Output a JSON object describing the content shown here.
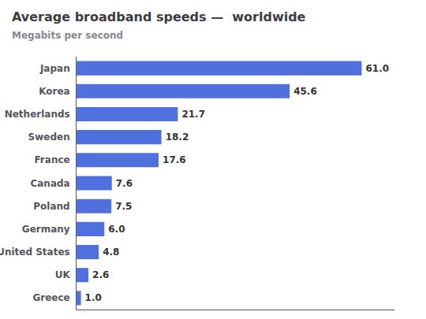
{
  "chart_data": {
    "type": "bar",
    "title": "Average broadband speeds —  worldwide",
    "subtitle": "Megabits per second",
    "orientation": "horizontal",
    "categories": [
      "Japan",
      "Korea",
      "Netherlands",
      "Sweden",
      "France",
      "Canada",
      "Poland",
      "Germany",
      "United States",
      "UK",
      "Greece"
    ],
    "values": [
      61.0,
      45.6,
      21.7,
      18.2,
      17.6,
      7.6,
      7.5,
      6.0,
      4.8,
      2.6,
      1.0
    ],
    "value_labels": [
      "61.0",
      "45.6",
      "21.7",
      "18.2",
      "17.6",
      "7.6",
      "7.5",
      "6.0",
      "4.8",
      "2.6",
      "1.0"
    ],
    "data_labels": true,
    "xlim": [
      0,
      68
    ],
    "tick_labels": "y",
    "grid": false
  }
}
